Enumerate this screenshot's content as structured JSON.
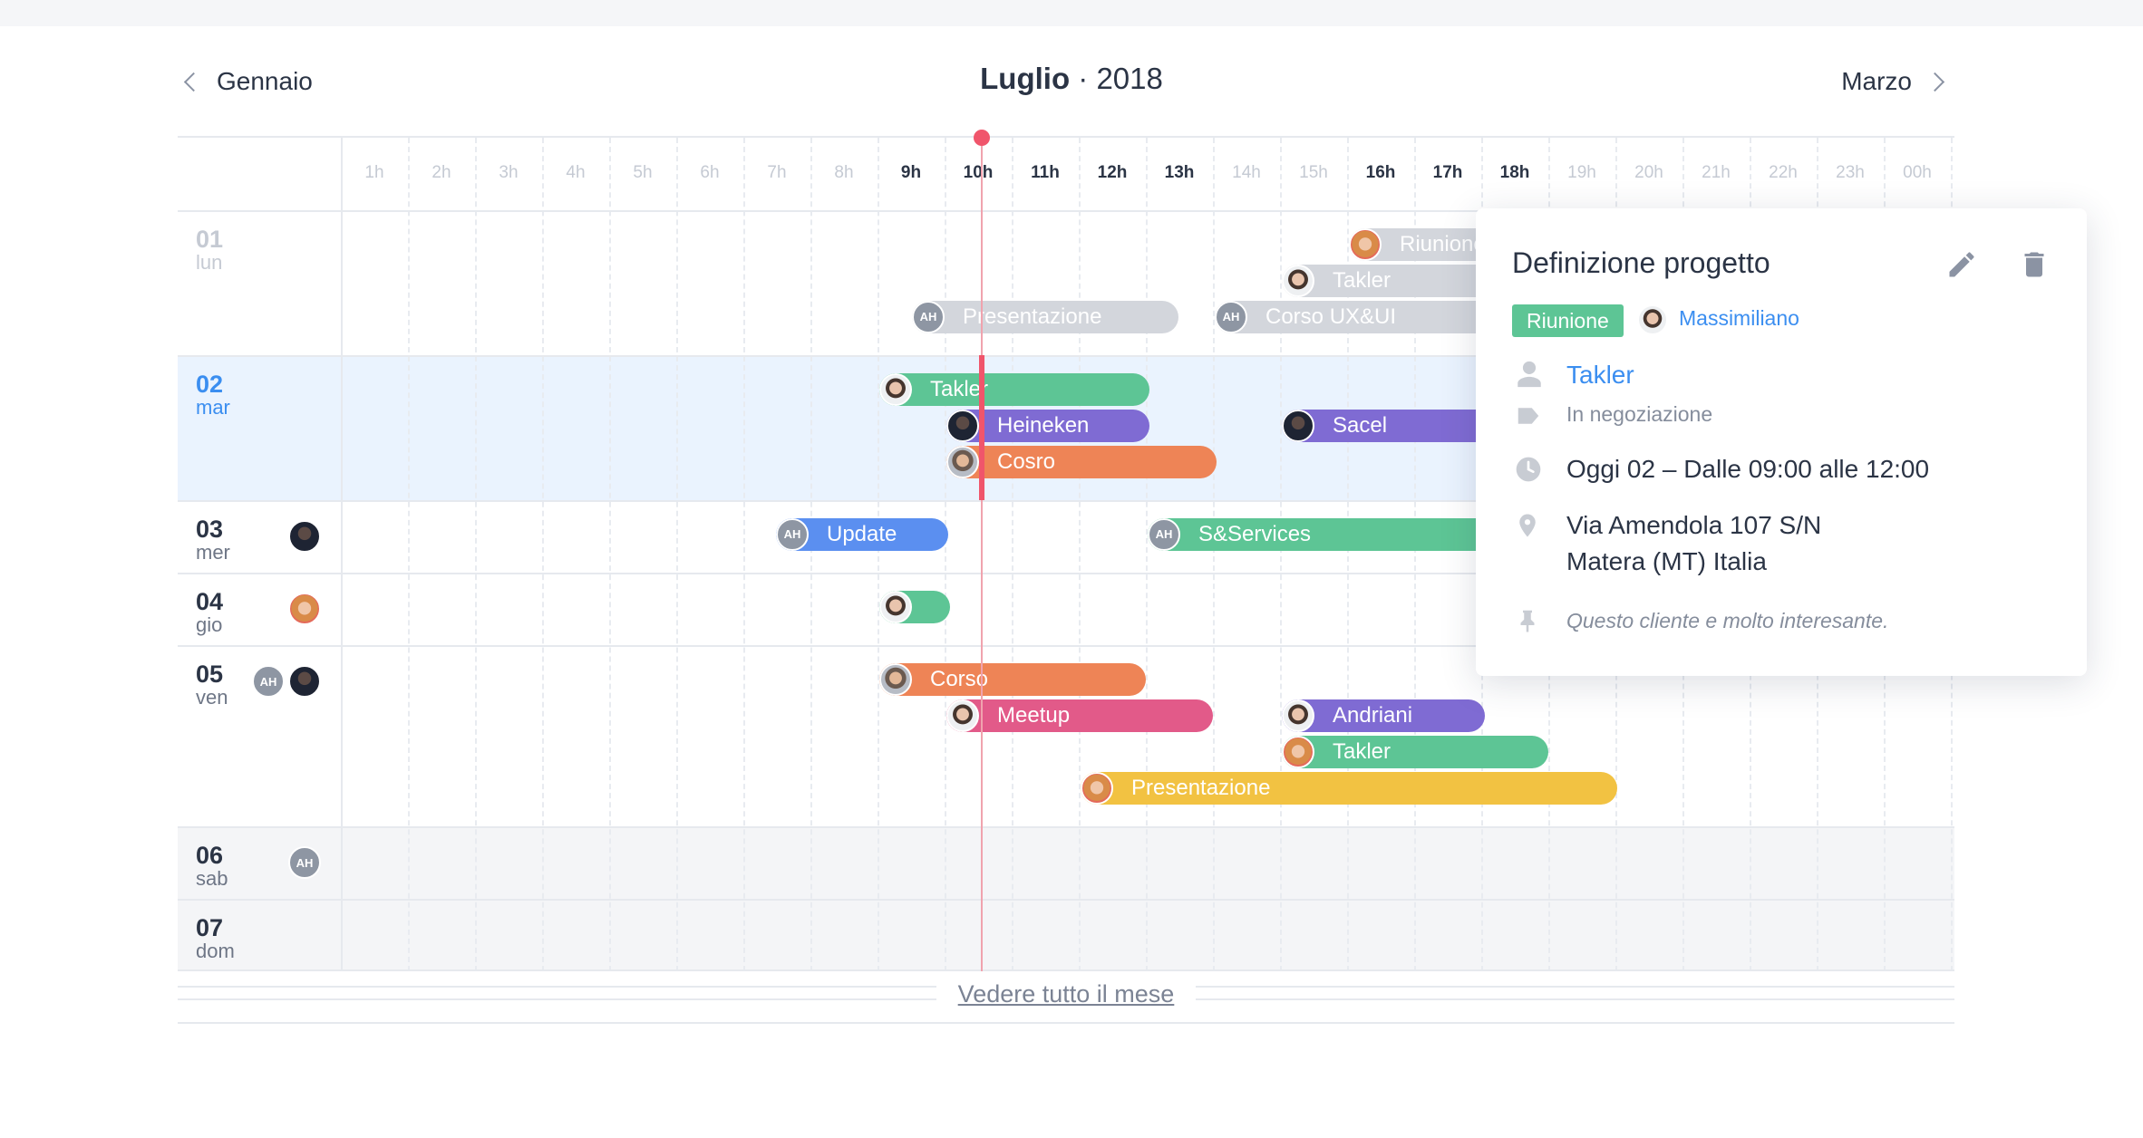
{
  "header": {
    "prev_label": "Gennaio",
    "next_label": "Marzo",
    "month": "Luglio",
    "separator": " · ",
    "year": "2018"
  },
  "hours": [
    "1h",
    "2h",
    "3h",
    "4h",
    "5h",
    "6h",
    "7h",
    "8h",
    "9h",
    "10h",
    "11h",
    "12h",
    "13h",
    "14h",
    "15h",
    "16h",
    "17h",
    "18h",
    "19h",
    "20h",
    "21h",
    "22h",
    "23h",
    "00h"
  ],
  "active_hours": [
    "9h",
    "10h",
    "11h",
    "12h",
    "13h",
    "16h",
    "17h",
    "18h"
  ],
  "days": [
    {
      "num": "01",
      "weekday": "lun"
    },
    {
      "num": "02",
      "weekday": "mar"
    },
    {
      "num": "03",
      "weekday": "mer"
    },
    {
      "num": "04",
      "weekday": "gio"
    },
    {
      "num": "05",
      "weekday": "ven"
    },
    {
      "num": "06",
      "weekday": "sab"
    },
    {
      "num": "07",
      "weekday": "dom"
    }
  ],
  "events": {
    "riunione": "Riunione",
    "takler": "Takler",
    "presentazione": "Presentazione",
    "corso_uxui": "Corso UX&UI",
    "heineken": "Heineken",
    "sacel": "Sacel",
    "cosro": "Cosro",
    "update": "Update",
    "sservices": "S&Services",
    "corso": "Corso",
    "meetup": "Meetup",
    "andriani": "Andriani"
  },
  "avatar_initials": "AH",
  "see_all": "Vedere tutto il mese",
  "popover": {
    "title": "Definizione progetto",
    "tag": "Riunione",
    "owner": "Massimiliano",
    "client": "Takler",
    "status": "In negoziazione",
    "time": "Oggi 02 – Dalle 09:00 alle 12:00",
    "address_line1": "Via Amendola 107 S/N",
    "address_line2": "Matera (MT) Italia",
    "note": "Questo cliente e molto interesante."
  },
  "colors": {
    "accent": "#3b8ef0",
    "green": "#5dc595",
    "purple": "#7f6bd3",
    "orange": "#ee8456",
    "blue": "#5b8ff0",
    "pink": "#e25a89",
    "yellow": "#f2c242",
    "now_line": "#f0556b"
  }
}
